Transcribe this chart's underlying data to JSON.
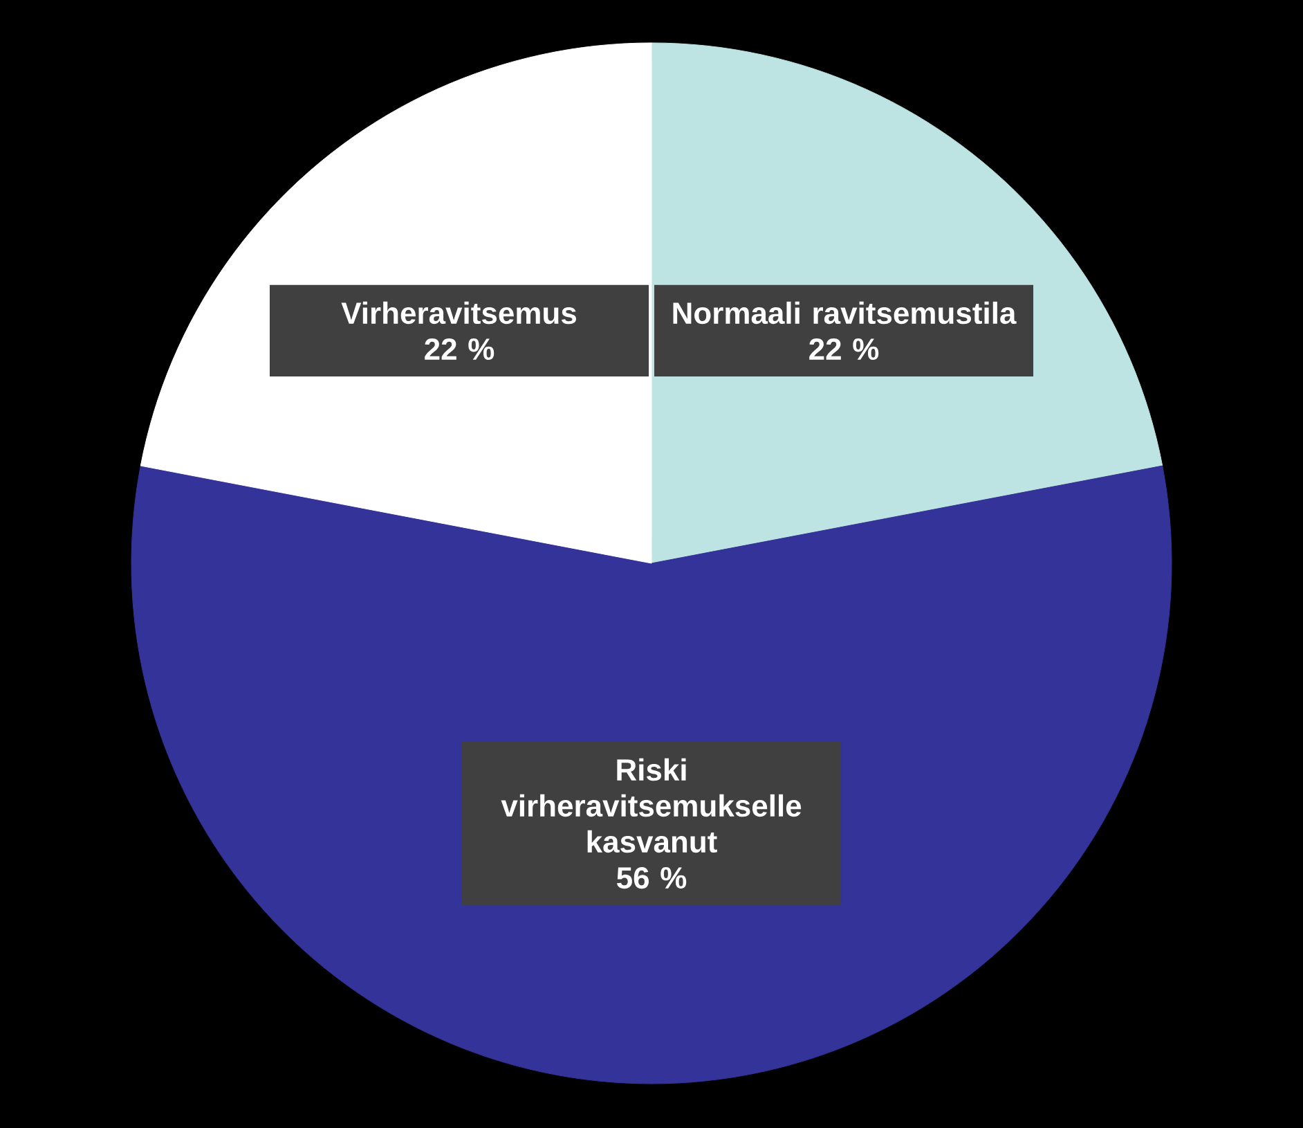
{
  "chart_data": {
    "type": "pie",
    "categories": [
      "Normaali ravitsemustila",
      "Riski virheravitsemukselle kasvanut",
      "Virheravitsemus"
    ],
    "values": [
      22,
      56,
      22
    ],
    "colors": [
      "#bde3e3",
      "#333399",
      "#ffffff"
    ],
    "value_labels": [
      "22 %",
      "56 %",
      "22 %"
    ]
  }
}
